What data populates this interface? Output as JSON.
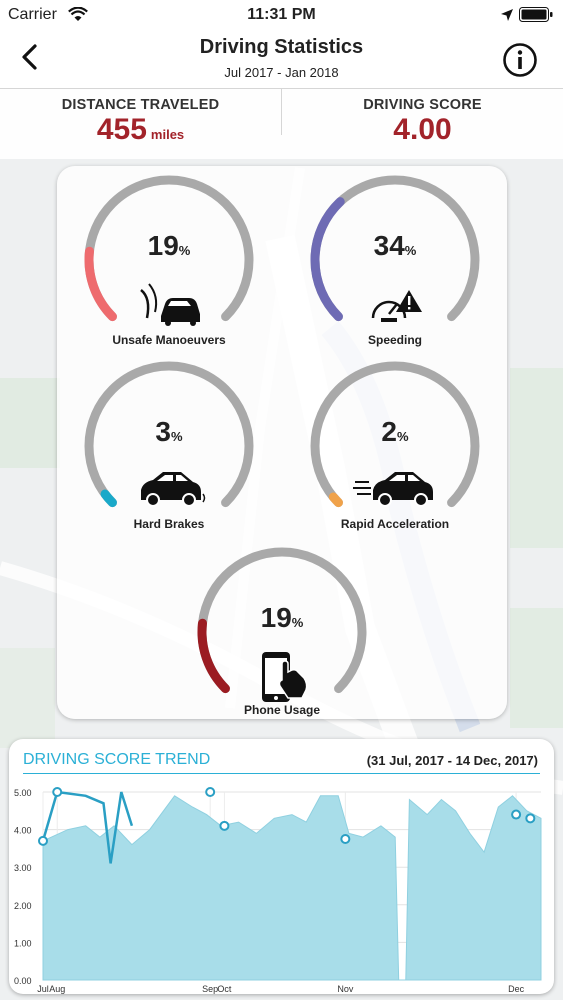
{
  "status_bar": {
    "carrier": "Carrier",
    "time": "11:31 PM"
  },
  "header": {
    "title": "Driving Statistics",
    "subtitle": "Jul 2017 - Jan 2018"
  },
  "summary": {
    "distance_label": "DISTANCE TRAVELED",
    "distance_value": "455",
    "distance_unit": "miles",
    "score_label": "DRIVING SCORE",
    "score_value": "4.00"
  },
  "gauges": [
    {
      "label": "Unsafe Manoeuvers",
      "value": "19",
      "sign": "%",
      "percent": 19,
      "color": "#ee6b6e",
      "icon": "swerving-car-icon"
    },
    {
      "label": "Speeding",
      "value": "34",
      "sign": "%",
      "percent": 34,
      "color": "#6e6bb4",
      "icon": "speedometer-warning-icon"
    },
    {
      "label": "Hard Brakes",
      "value": "3",
      "sign": "%",
      "percent": 3,
      "color": "#1aa9c9",
      "icon": "braking-car-icon"
    },
    {
      "label": "Rapid Acceleration",
      "value": "2",
      "sign": "%",
      "percent": 2,
      "color": "#f0a24a",
      "icon": "accelerating-car-icon"
    },
    {
      "label": "Phone Usage",
      "value": "19",
      "sign": "%",
      "percent": 19,
      "color": "#9b1c22",
      "icon": "phone-touch-icon"
    }
  ],
  "trend": {
    "title": "DRIVING SCORE TREND",
    "range": "(31 Jul, 2017 - 14 Dec, 2017)"
  },
  "chart_data": {
    "type": "area",
    "title": "DRIVING SCORE TREND",
    "ylim": [
      0,
      5
    ],
    "yticks": [
      "0.00",
      "1.00",
      "2.00",
      "3.00",
      "4.00",
      "5.00"
    ],
    "xticks": [
      {
        "label": "Jul",
        "x": 0
      },
      {
        "label": "Aug",
        "x": 4
      },
      {
        "label": "Sep",
        "x": 47
      },
      {
        "label": "Oct",
        "x": 51
      },
      {
        "label": "Nov",
        "x": 85
      },
      {
        "label": "Dec",
        "x": 133
      }
    ],
    "grid": true,
    "fill_color": "#a8dde9",
    "line_color": "#2a9fc4",
    "area_values": [
      [
        0,
        3.7
      ],
      [
        7,
        4.0
      ],
      [
        12,
        4.1
      ],
      [
        16,
        3.8
      ],
      [
        20,
        4.1
      ],
      [
        25,
        3.6
      ],
      [
        30,
        4.0
      ],
      [
        37,
        4.9
      ],
      [
        42,
        4.6
      ],
      [
        46,
        4.4
      ],
      [
        50,
        4.1
      ],
      [
        55,
        4.2
      ],
      [
        60,
        3.9
      ],
      [
        65,
        4.3
      ],
      [
        70,
        4.4
      ],
      [
        74,
        4.2
      ],
      [
        78,
        4.9
      ],
      [
        83,
        4.9
      ],
      [
        86,
        3.9
      ],
      [
        90,
        3.8
      ],
      [
        95,
        4.1
      ],
      [
        99,
        3.8
      ],
      [
        100,
        0.0
      ],
      [
        102,
        0.0
      ],
      [
        103,
        4.8
      ],
      [
        108,
        4.4
      ],
      [
        112,
        4.8
      ],
      [
        116,
        4.5
      ],
      [
        120,
        3.9
      ],
      [
        124,
        3.4
      ],
      [
        128,
        4.6
      ],
      [
        132,
        4.9
      ],
      [
        136,
        4.5
      ],
      [
        140,
        4.3
      ]
    ],
    "line_values": [
      [
        0,
        3.7
      ],
      [
        4,
        5.0
      ],
      [
        12,
        4.9
      ],
      [
        17,
        4.7
      ],
      [
        19,
        3.1
      ],
      [
        22,
        5.0
      ],
      [
        25,
        4.1
      ]
    ],
    "markers": [
      [
        0,
        3.7
      ],
      [
        4,
        5.0
      ],
      [
        47,
        5.0
      ],
      [
        51,
        4.1
      ],
      [
        85,
        3.75
      ],
      [
        133,
        4.4
      ],
      [
        137,
        4.3
      ]
    ],
    "xlim": [
      0,
      140
    ]
  }
}
